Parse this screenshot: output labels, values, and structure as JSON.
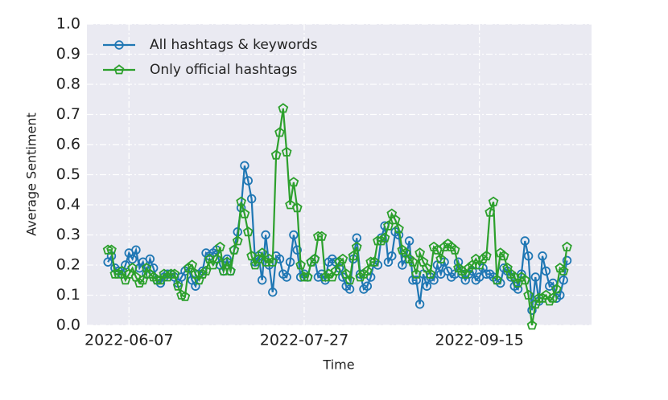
{
  "chart_data": {
    "type": "line",
    "x": [
      "2022-06-01",
      "2022-06-02",
      "2022-06-03",
      "2022-06-04",
      "2022-06-05",
      "2022-06-06",
      "2022-06-07",
      "2022-06-08",
      "2022-06-09",
      "2022-06-10",
      "2022-06-11",
      "2022-06-12",
      "2022-06-13",
      "2022-06-14",
      "2022-06-15",
      "2022-06-16",
      "2022-06-17",
      "2022-06-18",
      "2022-06-19",
      "2022-06-20",
      "2022-06-21",
      "2022-06-22",
      "2022-06-23",
      "2022-06-24",
      "2022-06-25",
      "2022-06-26",
      "2022-06-27",
      "2022-06-28",
      "2022-06-29",
      "2022-06-30",
      "2022-07-01",
      "2022-07-02",
      "2022-07-03",
      "2022-07-04",
      "2022-07-05",
      "2022-07-06",
      "2022-07-07",
      "2022-07-08",
      "2022-07-09",
      "2022-07-10",
      "2022-07-11",
      "2022-07-12",
      "2022-07-13",
      "2022-07-14",
      "2022-07-15",
      "2022-07-16",
      "2022-07-17",
      "2022-07-18",
      "2022-07-19",
      "2022-07-20",
      "2022-07-21",
      "2022-07-22",
      "2022-07-23",
      "2022-07-24",
      "2022-07-25",
      "2022-07-26",
      "2022-07-27",
      "2022-07-28",
      "2022-07-29",
      "2022-07-30",
      "2022-07-31",
      "2022-08-01",
      "2022-08-02",
      "2022-08-03",
      "2022-08-04",
      "2022-08-05",
      "2022-08-06",
      "2022-08-07",
      "2022-08-08",
      "2022-08-09",
      "2022-08-10",
      "2022-08-11",
      "2022-08-12",
      "2022-08-13",
      "2022-08-14",
      "2022-08-15",
      "2022-08-16",
      "2022-08-17",
      "2022-08-18",
      "2022-08-19",
      "2022-08-20",
      "2022-08-21",
      "2022-08-22",
      "2022-08-23",
      "2022-08-24",
      "2022-08-25",
      "2022-08-26",
      "2022-08-27",
      "2022-08-28",
      "2022-08-29",
      "2022-08-30",
      "2022-08-31",
      "2022-09-01",
      "2022-09-02",
      "2022-09-03",
      "2022-09-04",
      "2022-09-05",
      "2022-09-06",
      "2022-09-07",
      "2022-09-08",
      "2022-09-09",
      "2022-09-10",
      "2022-09-11",
      "2022-09-12",
      "2022-09-13",
      "2022-09-14",
      "2022-09-15",
      "2022-09-16",
      "2022-09-17",
      "2022-09-18",
      "2022-09-19",
      "2022-09-20",
      "2022-09-21",
      "2022-09-22",
      "2022-09-23",
      "2022-09-24",
      "2022-09-25",
      "2022-09-26",
      "2022-09-27",
      "2022-09-28",
      "2022-09-29",
      "2022-09-30",
      "2022-10-01",
      "2022-10-02",
      "2022-10-03",
      "2022-10-04",
      "2022-10-05",
      "2022-10-06",
      "2022-10-07",
      "2022-10-08",
      "2022-10-09",
      "2022-10-10"
    ],
    "series": [
      {
        "name": "All hashtags & keywords",
        "color": "#1f77b4",
        "marker": "circle",
        "values": [
          0.21,
          0.23,
          0.19,
          0.18,
          0.17,
          0.2,
          0.24,
          0.22,
          0.25,
          0.19,
          0.21,
          0.17,
          0.22,
          0.19,
          0.15,
          0.14,
          0.16,
          0.17,
          0.17,
          0.16,
          0.14,
          0.16,
          0.18,
          0.19,
          0.15,
          0.13,
          0.17,
          0.18,
          0.24,
          0.23,
          0.24,
          0.25,
          0.2,
          0.18,
          0.22,
          0.18,
          0.25,
          0.31,
          0.39,
          0.53,
          0.48,
          0.42,
          0.21,
          0.23,
          0.15,
          0.3,
          0.2,
          0.11,
          0.23,
          0.22,
          0.17,
          0.16,
          0.21,
          0.3,
          0.25,
          0.16,
          0.17,
          0.16,
          0.21,
          0.22,
          0.16,
          0.17,
          0.15,
          0.21,
          0.22,
          0.21,
          0.19,
          0.16,
          0.13,
          0.12,
          0.22,
          0.29,
          0.17,
          0.12,
          0.13,
          0.16,
          0.21,
          0.2,
          0.29,
          0.33,
          0.21,
          0.23,
          0.31,
          0.3,
          0.2,
          0.22,
          0.28,
          0.15,
          0.15,
          0.07,
          0.17,
          0.13,
          0.16,
          0.15,
          0.2,
          0.17,
          0.21,
          0.18,
          0.16,
          0.17,
          0.21,
          0.17,
          0.15,
          0.17,
          0.18,
          0.15,
          0.16,
          0.19,
          0.17,
          0.17,
          0.16,
          0.15,
          0.14,
          0.19,
          0.18,
          0.16,
          0.13,
          0.12,
          0.17,
          0.28,
          0.23,
          0.05,
          0.16,
          0.08,
          0.23,
          0.18,
          0.13,
          0.14,
          0.09,
          0.1,
          0.15,
          0.215
        ]
      },
      {
        "name": "Only official hashtags",
        "color": "#2ca02c",
        "marker": "pentagon",
        "values": [
          0.25,
          0.25,
          0.17,
          0.17,
          0.18,
          0.15,
          0.17,
          0.19,
          0.16,
          0.14,
          0.15,
          0.19,
          0.17,
          0.16,
          0.15,
          0.15,
          0.17,
          0.16,
          0.17,
          0.17,
          0.13,
          0.1,
          0.095,
          0.19,
          0.2,
          0.17,
          0.15,
          0.17,
          0.18,
          0.22,
          0.2,
          0.22,
          0.26,
          0.18,
          0.21,
          0.18,
          0.25,
          0.28,
          0.41,
          0.37,
          0.31,
          0.23,
          0.2,
          0.22,
          0.24,
          0.21,
          0.22,
          0.21,
          0.565,
          0.64,
          0.72,
          0.575,
          0.4,
          0.475,
          0.39,
          0.2,
          0.16,
          0.16,
          0.21,
          0.22,
          0.295,
          0.295,
          0.16,
          0.17,
          0.16,
          0.18,
          0.21,
          0.22,
          0.17,
          0.15,
          0.23,
          0.26,
          0.16,
          0.17,
          0.18,
          0.21,
          0.21,
          0.28,
          0.28,
          0.29,
          0.33,
          0.37,
          0.35,
          0.32,
          0.25,
          0.24,
          0.22,
          0.21,
          0.17,
          0.24,
          0.21,
          0.19,
          0.17,
          0.26,
          0.25,
          0.22,
          0.26,
          0.27,
          0.26,
          0.25,
          0.19,
          0.18,
          0.17,
          0.19,
          0.2,
          0.22,
          0.2,
          0.22,
          0.23,
          0.375,
          0.41,
          0.15,
          0.24,
          0.23,
          0.19,
          0.17,
          0.16,
          0.14,
          0.16,
          0.15,
          0.1,
          0.0,
          0.07,
          0.09,
          0.09,
          0.1,
          0.08,
          0.09,
          0.12,
          0.19,
          0.18,
          0.26
        ]
      }
    ],
    "xlabel": "Time",
    "ylabel": "Average Sentiment",
    "xlim": [
      "2022-05-26",
      "2022-10-17"
    ],
    "xticks": [
      "2022-06-07",
      "2022-07-27",
      "2022-09-15"
    ],
    "ylim": [
      0,
      1
    ],
    "yticks": [
      {
        "value": 0,
        "label": "0.0"
      },
      0.1,
      0.2,
      0.3,
      0.4,
      0.5,
      0.6,
      0.7,
      0.8,
      0.9,
      {
        "value": 1,
        "label": "1.0"
      }
    ],
    "grid": true,
    "legend": "upper left"
  }
}
